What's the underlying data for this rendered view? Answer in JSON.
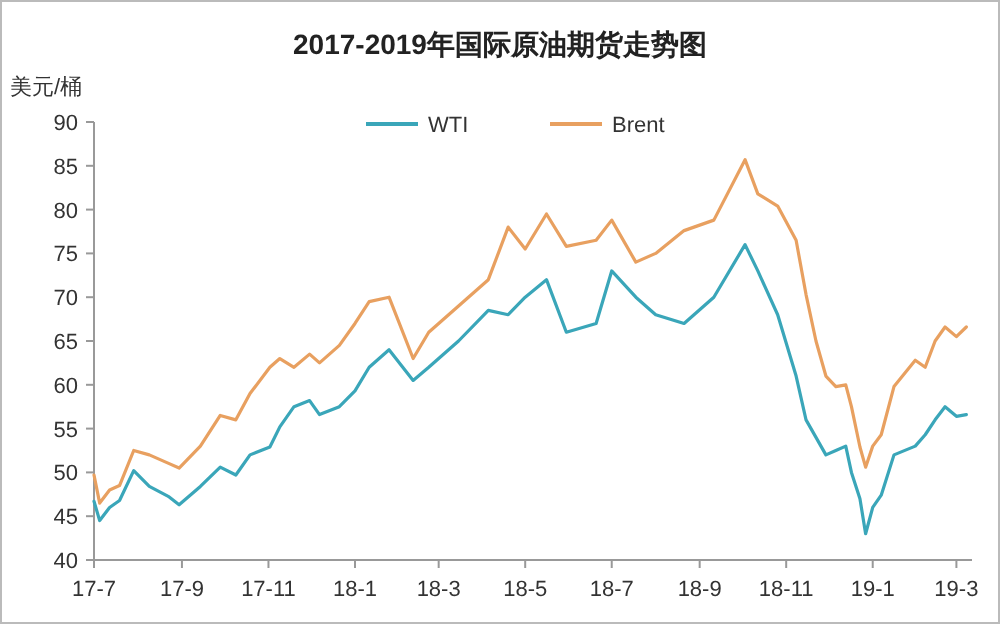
{
  "chart_data": {
    "type": "line",
    "title": "2017-2019年国际原油期货走势图",
    "ylabel": "美元/桶",
    "x": [
      "2017-07-01",
      "2017-07-05",
      "2017-07-12",
      "2017-07-19",
      "2017-07-29",
      "2017-08-09",
      "2017-08-23",
      "2017-08-30",
      "2017-09-14",
      "2017-09-28",
      "2017-10-09",
      "2017-10-19",
      "2017-11-02",
      "2017-11-09",
      "2017-11-19",
      "2017-11-30",
      "2017-12-07",
      "2017-12-21",
      "2018-01-01",
      "2018-01-11",
      "2018-01-25",
      "2018-02-11",
      "2018-02-22",
      "2018-03-15",
      "2018-04-05",
      "2018-04-19",
      "2018-05-01",
      "2018-05-16",
      "2018-05-30",
      "2018-06-20",
      "2018-07-01",
      "2018-07-18",
      "2018-08-01",
      "2018-08-21",
      "2018-09-11",
      "2018-10-03",
      "2018-10-12",
      "2018-10-26",
      "2018-11-08",
      "2018-11-15",
      "2018-11-22",
      "2018-11-29",
      "2018-12-06",
      "2018-12-13",
      "2018-12-17",
      "2018-12-23",
      "2018-12-27",
      "2019-01-01",
      "2019-01-07",
      "2019-01-16",
      "2019-01-31",
      "2019-02-07",
      "2019-02-14",
      "2019-02-21",
      "2019-03-01",
      "2019-03-08"
    ],
    "series": [
      {
        "name": "WTI",
        "color": "#3aa6b9",
        "values": [
          46.7,
          44.5,
          46,
          46.8,
          50.2,
          48.4,
          47.2,
          46.3,
          48.4,
          50.6,
          49.7,
          52,
          52.9,
          55.2,
          57.5,
          58.2,
          56.6,
          57.5,
          59.3,
          62,
          64,
          60.5,
          62,
          65,
          68.5,
          68,
          70,
          72,
          66,
          67,
          73,
          70,
          68,
          67,
          70,
          76,
          73,
          68,
          61,
          56,
          54,
          52,
          52.5,
          53,
          50,
          47,
          43,
          46,
          47.4,
          52,
          53,
          54.3,
          56,
          57.5,
          56.4,
          56.6
        ]
      },
      {
        "name": "Brent",
        "color": "#e8a060",
        "values": [
          49.7,
          46.5,
          48,
          48.5,
          52.5,
          52,
          51,
          50.5,
          53,
          56.5,
          56,
          59,
          62,
          63,
          62,
          63.5,
          62.5,
          64.5,
          67,
          69.5,
          70,
          63,
          66,
          69,
          72,
          78,
          75.5,
          79.5,
          75.8,
          76.5,
          78.8,
          74,
          75,
          77.6,
          78.8,
          85.7,
          81.8,
          80.4,
          76.5,
          70.3,
          65,
          61,
          59.8,
          60,
          57.5,
          52.9,
          50.6,
          53,
          54.3,
          59.8,
          62.8,
          62,
          65,
          66.6,
          65.5,
          66.6
        ]
      }
    ],
    "xlim": [
      "2017-07-01",
      "2019-03-12"
    ],
    "xticks": [
      {
        "value": "2017-07-01",
        "label": "17-7"
      },
      {
        "value": "2017-09-01",
        "label": "17-9"
      },
      {
        "value": "2017-11-01",
        "label": "17-11"
      },
      {
        "value": "2018-01-01",
        "label": "18-1"
      },
      {
        "value": "2018-03-01",
        "label": "18-3"
      },
      {
        "value": "2018-05-01",
        "label": "18-5"
      },
      {
        "value": "2018-07-01",
        "label": "18-7"
      },
      {
        "value": "2018-09-01",
        "label": "18-9"
      },
      {
        "value": "2018-11-01",
        "label": "18-11"
      },
      {
        "value": "2019-01-01",
        "label": "19-1"
      },
      {
        "value": "2019-03-01",
        "label": "19-3"
      }
    ],
    "ylim": [
      40,
      90
    ],
    "yticks": [
      40,
      45,
      50,
      55,
      60,
      65,
      70,
      75,
      80,
      85,
      90
    ],
    "grid": false,
    "legend": "top",
    "marker": "none",
    "line_style": "solid"
  }
}
